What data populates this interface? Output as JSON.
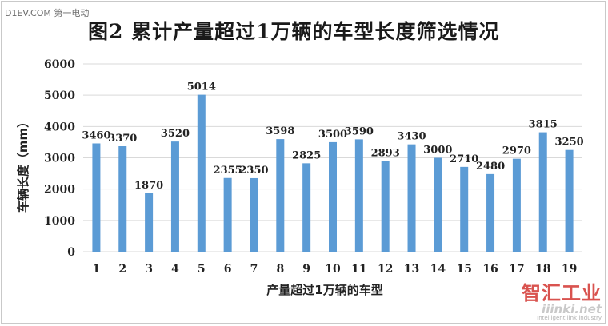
{
  "watermark": "D1EV.COM 第一电动",
  "chart_data": {
    "type": "bar",
    "title": "图2 累计产量超过1万辆的车型长度筛选情况",
    "xlabel": "产量超过1万辆的车型",
    "ylabel": "车辆长度（mm）",
    "categories": [
      "1",
      "2",
      "3",
      "4",
      "5",
      "6",
      "7",
      "8",
      "9",
      "10",
      "11",
      "12",
      "13",
      "14",
      "15",
      "16",
      "17",
      "18",
      "19"
    ],
    "values": [
      3460,
      3370,
      1870,
      3520,
      5014,
      2355,
      2350,
      3598,
      2825,
      3500,
      3590,
      2893,
      3430,
      3000,
      2710,
      2480,
      2970,
      3815,
      3250
    ],
    "ylim": [
      0,
      6000
    ],
    "yticks": [
      0,
      1000,
      2000,
      3000,
      4000,
      5000,
      6000
    ],
    "grid": true,
    "bar_color": "#5b9bd5",
    "grid_color": "#d9d9d9"
  },
  "brand": {
    "name": "智汇工业",
    "site": "iiinki.net",
    "tagline": "Intelligent link industry"
  }
}
